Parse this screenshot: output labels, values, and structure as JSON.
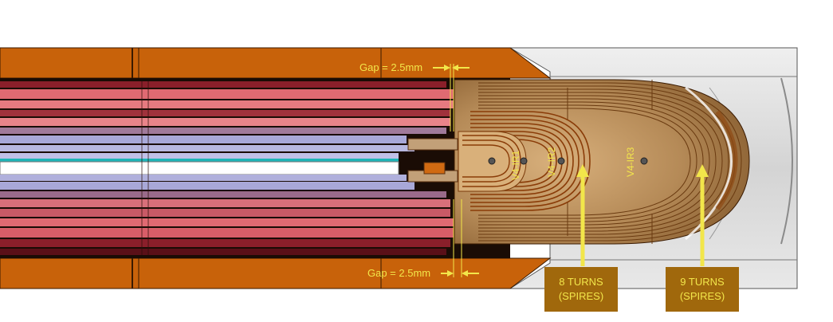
{
  "annotations": {
    "gap_top": "Gap = 2.5mm",
    "gap_bottom": "Gap = 2.5mm"
  },
  "coils": [
    {
      "label": "V4-IR1"
    },
    {
      "label": "V4-IR2"
    },
    {
      "label": "V4-IR3"
    }
  ],
  "callouts": [
    {
      "line1": "8 TURNS",
      "line2": "(SPIRES)"
    },
    {
      "line1": "9 TURNS",
      "line2": "(SPIRES)"
    }
  ],
  "colors": {
    "copper": "#c8620a",
    "annotation": "#f2e64a",
    "callout_bg": "#a0680c",
    "shell": "#d9d9d9"
  }
}
